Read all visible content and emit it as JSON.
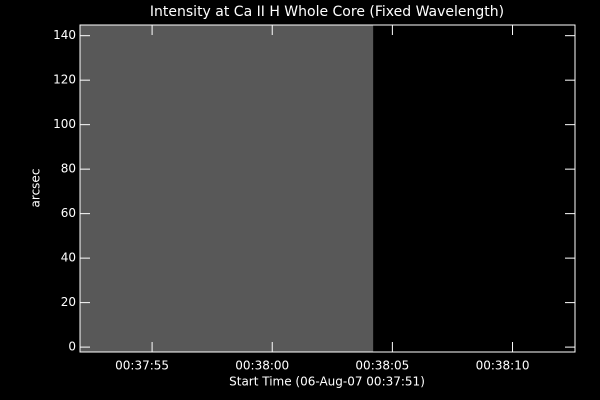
{
  "chart_data": {
    "type": "image",
    "title": "Intensity at Ca II H Whole Core (Fixed Wavelength)",
    "xlabel": "Start Time (06-Aug-07 00:37:51)",
    "ylabel": "arcsec",
    "x": [
      1,
      13.2
    ],
    "color": "#585858",
    "xlim": [
      1,
      21.6
    ],
    "xticks": [
      {
        "value": 4,
        "label": "00:37:55"
      },
      {
        "value": 9,
        "label": "00:38:00"
      },
      {
        "value": 14,
        "label": "00:38:05"
      },
      {
        "value": 19,
        "label": "00:38:10"
      }
    ],
    "ylim": [
      -2.2,
      144.8
    ],
    "yticks": [
      0,
      20,
      40,
      60,
      80,
      100,
      120,
      140
    ]
  }
}
